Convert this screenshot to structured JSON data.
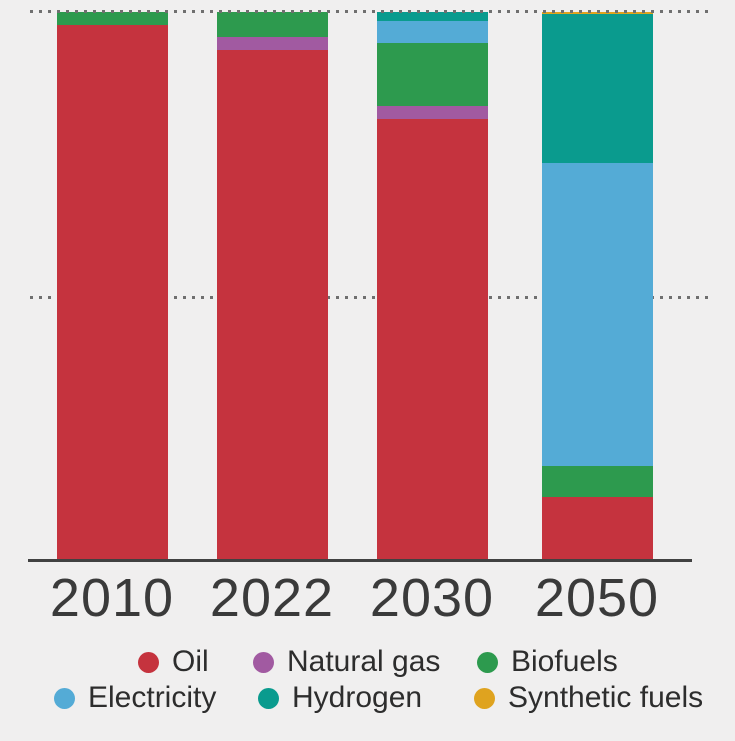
{
  "page": {
    "background": "#f0efef",
    "grid_color": "#6f6f6f",
    "axis_color": "#414141",
    "text_color": "#3a3a3a"
  },
  "chart_data": {
    "type": "bar",
    "stacked": true,
    "unit": "percent share",
    "title": "",
    "xlabel": "",
    "ylabel": "",
    "ylim": [
      0,
      100
    ],
    "gridlines_pct": [
      50,
      100
    ],
    "grid_style": "dotted",
    "legend_position": "bottom",
    "categories": [
      "2010",
      "2022",
      "2030",
      "2050"
    ],
    "series": [
      {
        "name": "Oil",
        "color": "#c5333e",
        "values": [
          97.6,
          93.0,
          80.5,
          11.5
        ]
      },
      {
        "name": "Natural gas",
        "color": "#a15aa1",
        "values": [
          0,
          2.4,
          2.4,
          0
        ]
      },
      {
        "name": "Biofuels",
        "color": "#2d9a4e",
        "values": [
          2.4,
          4.6,
          11.5,
          5.6
        ]
      },
      {
        "name": "Electricity",
        "color": "#54abd6",
        "values": [
          0,
          0,
          4.0,
          55.4
        ]
      },
      {
        "name": "Hydrogen",
        "color": "#0a9b8e",
        "values": [
          0,
          0,
          1.6,
          27.1
        ]
      },
      {
        "name": "Synthetic fuels",
        "color": "#dfa31f",
        "values": [
          0,
          0,
          0,
          0.4
        ]
      }
    ],
    "stacking_order_bottom_to_top": [
      "Oil",
      "Natural gas",
      "Biofuels",
      "Electricity",
      "Hydrogen",
      "Synthetic fuels"
    ],
    "legend_rows": [
      [
        "Oil",
        "Natural gas",
        "Biofuels"
      ],
      [
        "Electricity",
        "Hydrogen",
        "Synthetic fuels"
      ]
    ]
  }
}
